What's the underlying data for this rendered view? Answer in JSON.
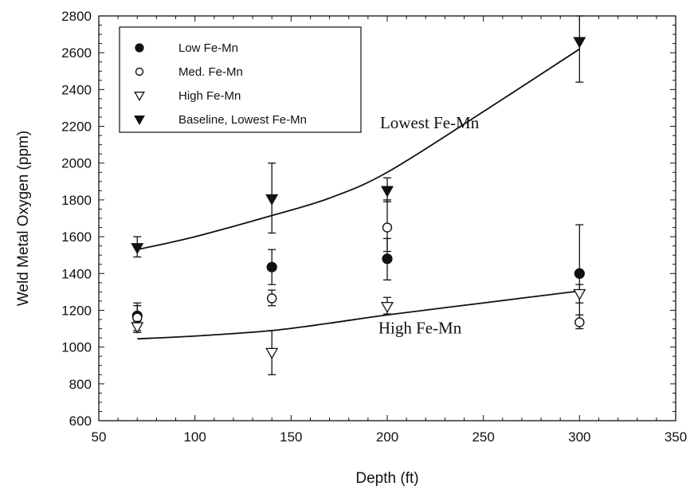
{
  "chart_data": {
    "type": "scatter",
    "xlabel": "Depth (ft)",
    "ylabel": "Weld Metal Oxygen (ppm)",
    "xlim": [
      50,
      350
    ],
    "ylim": [
      600,
      2800
    ],
    "x_ticks": [
      50,
      100,
      150,
      200,
      250,
      300,
      350
    ],
    "y_ticks": [
      600,
      800,
      1000,
      1200,
      1400,
      1600,
      1800,
      2000,
      2200,
      2400,
      2600,
      2800
    ],
    "grid": false,
    "legend_position": "top-left",
    "series": [
      {
        "name": "Low Fe-Mn",
        "marker": "filled-circle",
        "points": [
          {
            "x": 70,
            "y": 1170,
            "lo": 1080,
            "hi": 1240
          },
          {
            "x": 140,
            "y": 1435,
            "lo": 1340,
            "hi": 1530
          },
          {
            "x": 200,
            "y": 1480,
            "lo": 1365,
            "hi": 1590
          },
          {
            "x": 300,
            "y": 1400,
            "lo": 1130,
            "hi": 1665
          }
        ]
      },
      {
        "name": "Med. Fe-Mn",
        "marker": "open-circle",
        "points": [
          {
            "x": 70,
            "y": 1160,
            "lo": 1090,
            "hi": 1225
          },
          {
            "x": 140,
            "y": 1265,
            "lo": 1225,
            "hi": 1310
          },
          {
            "x": 200,
            "y": 1650,
            "lo": 1520,
            "hi": 1800
          },
          {
            "x": 300,
            "y": 1135,
            "lo": 1100,
            "hi": 1175
          }
        ]
      },
      {
        "name": "High Fe-Mn",
        "marker": "open-triangle-down",
        "points": [
          {
            "x": 70,
            "y": 1110,
            "lo": 1080,
            "hi": 1140
          },
          {
            "x": 140,
            "y": 970,
            "lo": 850,
            "hi": 1090
          },
          {
            "x": 200,
            "y": 1220,
            "lo": 1180,
            "hi": 1270
          },
          {
            "x": 300,
            "y": 1290,
            "lo": 1240,
            "hi": 1340
          }
        ]
      },
      {
        "name": "Baseline, Lowest Fe-Mn",
        "marker": "filled-triangle-down",
        "points": [
          {
            "x": 70,
            "y": 1540,
            "lo": 1490,
            "hi": 1600
          },
          {
            "x": 140,
            "y": 1805,
            "lo": 1620,
            "hi": 2000
          },
          {
            "x": 200,
            "y": 1850,
            "lo": 1790,
            "hi": 1920
          },
          {
            "x": 300,
            "y": 2660,
            "lo": 2440,
            "hi": 2800
          }
        ]
      }
    ],
    "fit_curves": [
      {
        "label": "Lowest Fe-Mn",
        "points": [
          [
            70,
            1530
          ],
          [
            100,
            1600
          ],
          [
            140,
            1715
          ],
          [
            170,
            1810
          ],
          [
            200,
            1950
          ],
          [
            250,
            2280
          ],
          [
            300,
            2620
          ]
        ],
        "label_at": [
          222,
          2190
        ]
      },
      {
        "label": "High Fe-Mn",
        "points": [
          [
            70,
            1045
          ],
          [
            100,
            1060
          ],
          [
            140,
            1090
          ],
          [
            170,
            1130
          ],
          [
            200,
            1175
          ],
          [
            250,
            1240
          ],
          [
            300,
            1305
          ]
        ],
        "label_at": [
          217,
          1075
        ]
      }
    ]
  }
}
